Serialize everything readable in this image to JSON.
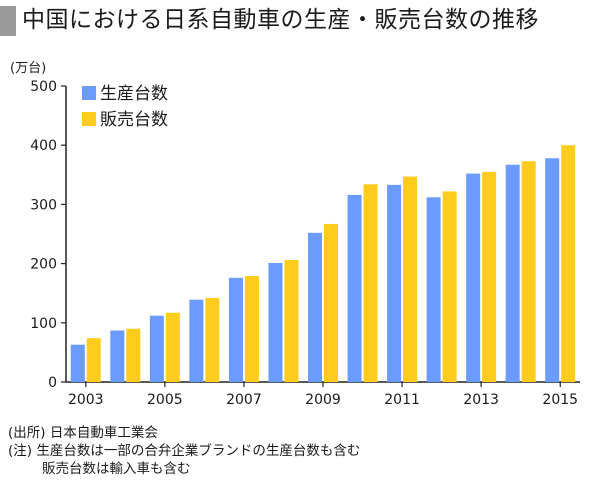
{
  "title": "中国における日系自動車の生産・販売台数の推移",
  "notes": {
    "source": "(出所) 日本自動車工業会",
    "note1": "(注) 生産台数は一部の合弁企業ブランドの生産台数も含む",
    "note2": "販売台数は輸入車も含む"
  },
  "colors": {
    "production": "#6b9bff",
    "sales": "#ffcc1e",
    "title_bar": "#9a9a9a"
  },
  "chart_data": {
    "type": "bar",
    "ylabel": "(万台)",
    "xlabel": "",
    "ylim": [
      0,
      500
    ],
    "yticks": [
      0,
      100,
      200,
      300,
      400,
      500
    ],
    "grid": false,
    "legend_position": "top-left",
    "categories": [
      "2003",
      "2004",
      "2005",
      "2006",
      "2007",
      "2008",
      "2009",
      "2010",
      "2011",
      "2012",
      "2013",
      "2014",
      "2015"
    ],
    "xtick_labels": [
      "2003",
      "2005",
      "2007",
      "2009",
      "2011",
      "2013",
      "2015"
    ],
    "series": [
      {
        "name": "生産台数",
        "values": [
          63,
          87,
          112,
          139,
          176,
          201,
          252,
          316,
          333,
          312,
          352,
          367,
          378
        ]
      },
      {
        "name": "販売台数",
        "values": [
          74,
          90,
          117,
          142,
          179,
          206,
          267,
          334,
          347,
          322,
          355,
          373,
          400
        ]
      }
    ]
  }
}
